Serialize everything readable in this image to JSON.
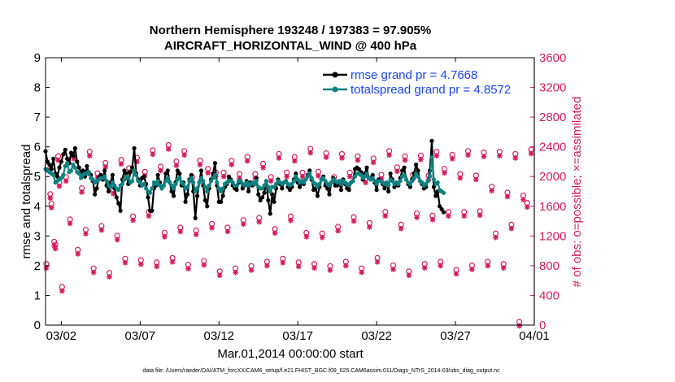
{
  "chart_data": {
    "type": "line",
    "title": "Northern Hemisphere 193248 / 197383 = 97.905%",
    "subtitle": "AIRCRAFT_HORIZONTAL_WIND @ 400 hPa",
    "xlabel": "Mar.01,2014 00:00:00 start",
    "ylabel_left": "rmse and totalspread",
    "ylabel_right": "# of obs: o=possible; ×=assimilated",
    "xlim": [
      0,
      31
    ],
    "ylim_left": [
      0,
      9
    ],
    "ylim_right": [
      0,
      3600
    ],
    "x_ticks": [
      1,
      6,
      11,
      16,
      21,
      26,
      31
    ],
    "x_tick_labels": [
      "03/02",
      "03/07",
      "03/12",
      "03/17",
      "03/22",
      "03/27",
      "04/01"
    ],
    "y_ticks_left": [
      "0",
      "1",
      "2",
      "3",
      "4",
      "5",
      "6",
      "7",
      "8",
      "9"
    ],
    "y_ticks_right": [
      "0",
      "400",
      "800",
      "1200",
      "1600",
      "2000",
      "2400",
      "2800",
      "3200",
      "3600"
    ],
    "x_step_days": 0.125,
    "legend": [
      {
        "label": "rmse grand pr = 4.7668",
        "color": "#000000"
      },
      {
        "label": "totalspread grand pr = 4.8572",
        "color": "#0f8080"
      }
    ],
    "colors": {
      "rmse": "#000000",
      "spread": "#0f8080",
      "obs": "#d41b5e",
      "right_axis": "#d41b5e",
      "legend_text": "#1a44f5"
    },
    "series": [
      {
        "name": "rmse",
        "values": [
          5.85,
          5.5,
          5.4,
          5.25,
          5.6,
          5.1,
          5.0,
          5.3,
          5.5,
          5.75,
          5.9,
          5.6,
          5.45,
          5.8,
          5.7,
          5.95,
          5.5,
          5.3,
          5.15,
          5.2,
          5.0,
          5.35,
          5.1,
          5.05,
          4.85,
          4.4,
          4.6,
          4.95,
          5.05,
          4.9,
          5.2,
          4.7,
          4.5,
          4.8,
          5.05,
          4.6,
          4.3,
          4.1,
          3.85,
          4.9,
          5.2,
          5.1,
          4.75,
          5.15,
          5.3,
          5.95,
          5.1,
          4.9,
          4.7,
          4.95,
          5.0,
          4.75,
          4.3,
          3.85,
          3.85,
          4.6,
          4.7,
          5.05,
          4.8,
          4.6,
          4.7,
          5.1,
          5.2,
          4.8,
          4.5,
          4.35,
          4.8,
          5.2,
          5.1,
          4.7,
          4.8,
          4.15,
          4.4,
          4.9,
          5.05,
          4.5,
          3.6,
          4.35,
          4.8,
          5.2,
          4.7,
          4.2,
          4.0,
          4.6,
          4.9,
          5.1,
          5.45,
          4.7,
          4.15,
          4.15,
          4.35,
          4.65,
          4.75,
          5.0,
          4.9,
          4.7,
          4.6,
          4.55,
          4.8,
          4.85,
          4.6,
          4.7,
          4.85,
          4.5,
          4.8,
          4.7,
          4.75,
          4.95,
          4.4,
          4.2,
          4.3,
          4.45,
          4.85,
          4.2,
          3.75,
          4.4,
          4.15,
          4.6,
          4.9,
          4.75,
          4.6,
          4.8,
          4.85,
          4.65,
          4.55,
          4.65,
          4.9,
          5.1,
          4.8,
          4.65,
          4.8,
          4.75,
          4.9,
          5.05,
          5.2,
          4.9,
          4.55,
          4.6,
          4.35,
          4.65,
          4.9,
          5.0,
          4.7,
          4.6,
          4.4,
          4.8,
          4.95,
          4.7,
          4.7,
          4.8,
          4.55,
          4.9,
          4.75,
          4.6,
          4.55,
          4.8,
          4.85,
          5.25,
          5.3,
          5.25,
          5.15,
          4.9,
          5.1,
          5.3,
          4.95,
          4.95,
          5.05,
          4.8,
          4.55,
          4.9,
          4.85,
          4.75,
          4.6,
          4.8,
          4.5,
          5.1,
          4.9,
          4.65,
          4.75,
          4.7,
          4.95,
          5.2,
          5.3,
          4.9,
          4.75,
          4.65,
          4.9,
          5.1,
          5.4,
          5.2,
          4.85,
          4.75,
          4.6,
          4.65,
          4.85,
          5.2,
          6.2,
          4.65,
          4.35,
          4.5,
          4.0,
          3.9,
          3.8
        ]
      },
      {
        "name": "totalspread",
        "values": [
          5.25,
          5.2,
          5.15,
          5.1,
          5.05,
          4.8,
          4.85,
          4.9,
          4.95,
          5.05,
          5.35,
          5.45,
          5.15,
          5.2,
          5.4,
          5.3,
          5.15,
          5.1,
          4.95,
          5.05,
          5.1,
          5.1,
          5.15,
          4.95,
          4.9,
          4.8,
          4.85,
          4.9,
          4.95,
          4.95,
          5.0,
          4.85,
          4.7,
          4.65,
          4.8,
          4.7,
          4.6,
          4.55,
          4.7,
          4.75,
          4.9,
          5.0,
          4.95,
          4.8,
          4.85,
          5.2,
          5.05,
          4.85,
          4.8,
          4.7,
          4.75,
          4.6,
          4.5,
          4.45,
          4.6,
          4.8,
          4.75,
          4.85,
          4.7,
          4.6,
          4.7,
          4.85,
          4.95,
          4.8,
          4.7,
          4.6,
          4.75,
          4.9,
          4.95,
          4.8,
          4.75,
          4.6,
          4.65,
          4.85,
          4.95,
          4.8,
          4.5,
          4.6,
          4.8,
          4.95,
          4.85,
          4.65,
          4.5,
          4.7,
          4.85,
          4.95,
          5.05,
          4.8,
          4.6,
          4.5,
          4.6,
          4.75,
          4.8,
          4.85,
          4.85,
          4.8,
          4.7,
          4.7,
          4.85,
          4.85,
          4.75,
          4.7,
          4.8,
          4.7,
          4.75,
          4.8,
          4.75,
          4.85,
          4.65,
          4.6,
          4.6,
          4.7,
          4.85,
          4.65,
          4.5,
          4.65,
          4.65,
          4.75,
          4.85,
          4.8,
          4.75,
          4.8,
          4.85,
          4.75,
          4.7,
          4.75,
          4.85,
          5.0,
          4.9,
          4.8,
          4.85,
          4.8,
          4.9,
          5.0,
          5.1,
          4.95,
          4.8,
          4.75,
          4.65,
          4.75,
          4.9,
          4.95,
          4.85,
          4.75,
          4.7,
          4.8,
          4.9,
          4.85,
          4.8,
          4.85,
          4.75,
          4.85,
          4.8,
          4.75,
          4.7,
          4.8,
          4.85,
          5.0,
          5.1,
          5.1,
          5.05,
          4.95,
          5.0,
          5.1,
          4.95,
          4.9,
          4.95,
          4.85,
          4.75,
          4.85,
          4.85,
          4.8,
          4.75,
          4.8,
          4.7,
          4.9,
          4.85,
          4.75,
          4.8,
          4.75,
          4.85,
          5.0,
          5.05,
          4.9,
          4.8,
          4.75,
          4.85,
          4.95,
          5.1,
          5.0,
          4.85,
          4.8,
          4.7,
          4.75,
          4.85,
          5.0,
          5.65,
          4.9,
          4.75,
          4.8,
          4.55,
          4.5,
          4.45
        ]
      }
    ],
    "obs_possible": {
      "pattern_by_6h_cycle": [
        [
          780,
          1720,
          1080,
          2230
        ],
        [
          470,
          1950,
          1380,
          2250
        ],
        [
          970,
          1800,
          1240,
          2290
        ],
        [
          720,
          2000,
          1290,
          2140
        ],
        [
          660,
          1780,
          1160,
          2180
        ],
        [
          850,
          2070,
          1420,
          2210
        ],
        [
          830,
          2020,
          1480,
          2310
        ],
        [
          800,
          2090,
          1200,
          2380
        ],
        [
          860,
          2160,
          1270,
          2300
        ],
        [
          770,
          1950,
          1230,
          2170
        ],
        [
          820,
          2060,
          1320,
          2010
        ],
        [
          680,
          2010,
          1270,
          2170
        ],
        [
          720,
          1990,
          1370,
          2220
        ],
        [
          750,
          1990,
          1400,
          2130
        ],
        [
          810,
          1950,
          1250,
          2260
        ],
        [
          850,
          2010,
          1420,
          2220
        ],
        [
          800,
          2010,
          1200,
          2330
        ],
        [
          780,
          2020,
          1190,
          2270
        ],
        [
          750,
          1950,
          1280,
          2260
        ],
        [
          810,
          2010,
          1410,
          2230
        ],
        [
          720,
          1930,
          1330,
          2200
        ],
        [
          860,
          1980,
          1480,
          2300
        ],
        [
          760,
          2080,
          1310,
          2230
        ],
        [
          680,
          1980,
          1460,
          2240
        ],
        [
          780,
          1970,
          1430,
          2290
        ],
        [
          810,
          2060,
          1480,
          2250
        ],
        [
          700,
          1990,
          1480,
          2300
        ],
        [
          760,
          1970,
          1490,
          2280
        ],
        [
          810,
          1820,
          1190,
          2290
        ],
        [
          780,
          1740,
          1310,
          2260
        ],
        [
          0,
          1700,
          1600,
          2320
        ]
      ],
      "extra_day0": [
        2100,
        1590,
        1040,
        1880
      ]
    }
  },
  "footnote": "data file: /Users/raeder/DAI/ATM_forcXX/CAM6_setup/f.e21.FHIST_BGC.f09_025.CAM6assim.011/Diags_NTrS_2014-03/obs_diag_output.nc"
}
